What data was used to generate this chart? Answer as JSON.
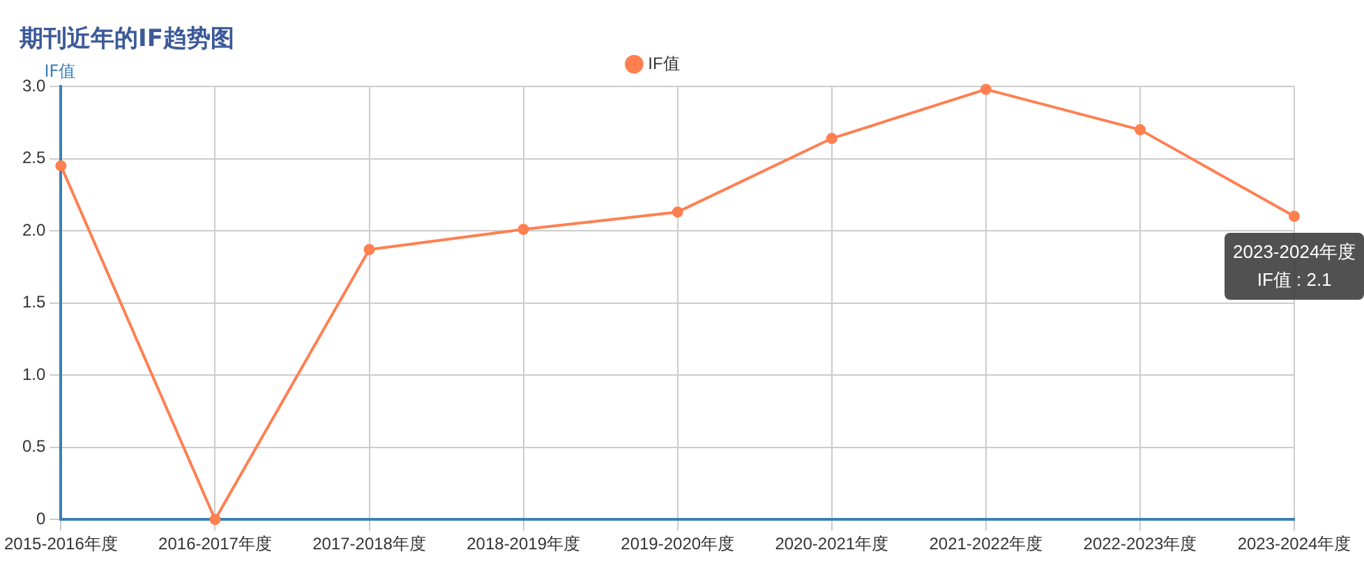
{
  "chart_data": {
    "type": "line",
    "title": "期刊近年的IF趋势图",
    "ylabel": "IF值",
    "categories": [
      "2015-2016年度",
      "2016-2017年度",
      "2017-2018年度",
      "2018-2019年度",
      "2019-2020年度",
      "2020-2021年度",
      "2021-2022年度",
      "2022-2023年度",
      "2023-2024年度"
    ],
    "series": [
      {
        "name": "IF值",
        "color": "#ff7f50",
        "values": [
          2.45,
          0,
          1.87,
          2.01,
          2.13,
          2.64,
          2.98,
          2.7,
          2.1
        ]
      }
    ],
    "ylim": [
      0,
      3
    ],
    "yticks": [
      0,
      0.5,
      {
        "value": 1,
        "label": "1.0"
      },
      1.5,
      {
        "value": 2,
        "label": "2.0"
      },
      2.5,
      {
        "value": 3,
        "label": "3.0"
      }
    ],
    "grid": true,
    "legend": "top",
    "marker": "circle",
    "line_style": "solid",
    "annotations": [
      {
        "text": "2023-2024年度\nIF值 : 2.1",
        "x": "2023-2024年度",
        "y": 2.1
      }
    ]
  }
}
